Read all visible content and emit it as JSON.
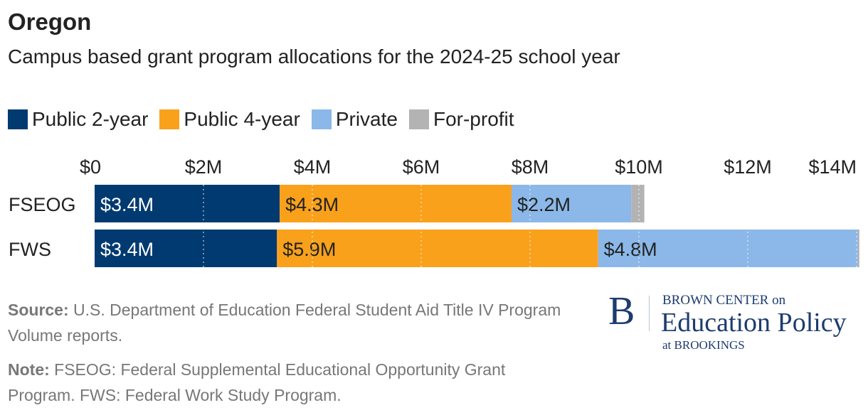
{
  "title": "Oregon",
  "subtitle": "Campus based grant program allocations for the 2024-25 school year",
  "chart_data": {
    "type": "bar",
    "orientation": "horizontal",
    "stacked": true,
    "categories": [
      "FSEOG",
      "FWS"
    ],
    "series": [
      {
        "name": "Public 2-year",
        "color": "#003a70",
        "values": [
          3.4,
          3.35
        ],
        "labels": [
          "$3.4M",
          "$3.4M"
        ]
      },
      {
        "name": "Public 4-year",
        "color": "#f9a11b",
        "values": [
          4.26,
          5.9
        ],
        "labels": [
          "$4.3M",
          "$5.9M"
        ]
      },
      {
        "name": "Private",
        "color": "#8bb8e8",
        "values": [
          2.2,
          4.77
        ],
        "labels": [
          "$2.2M",
          "$4.8M"
        ]
      },
      {
        "name": "For-profit",
        "color": "#b3b3b3",
        "values": [
          0.24,
          0.03
        ],
        "labels": [
          "",
          ""
        ]
      }
    ],
    "xticks": [
      0,
      2,
      4,
      6,
      8,
      10,
      12,
      14
    ],
    "xtick_labels": [
      "$0",
      "$2M",
      "$4M",
      "$6M",
      "$8M",
      "$10M",
      "$12M",
      "$14M"
    ],
    "xlim": [
      0,
      14
    ],
    "legend": "top-left",
    "grid": true
  },
  "footer": {
    "source_label": "Source:",
    "source_text": "U.S. Department of Education Federal Student Aid Title IV Program Volume reports.",
    "note_label": "Note:",
    "note_text": "FSEOG: Federal Supplemental Educational Opportunity Grant Program. FWS: Federal Work Study Program."
  },
  "logo": {
    "letter": "B",
    "line1": "BROWN CENTER on",
    "line2": "Education Policy",
    "line3": "at BROOKINGS"
  }
}
